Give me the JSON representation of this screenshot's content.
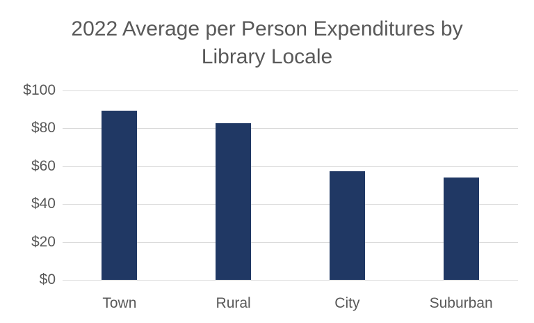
{
  "title_line1": "2022 Average per Person Expenditures by",
  "title_line2": "Library Locale",
  "bar_color": "#203864",
  "y_ticks": [
    "$100",
    "$80",
    "$60",
    "$40",
    "$20",
    "$0"
  ],
  "chart_data": {
    "type": "bar",
    "title": "2022 Average per Person Expenditures by Library Locale",
    "categories": [
      "Town",
      "Rural",
      "City",
      "Suburban"
    ],
    "values": [
      89.2,
      82.6,
      57.3,
      54.0
    ],
    "xlabel": "",
    "ylabel": "",
    "ylim": [
      0,
      100
    ],
    "y_tick_step": 20,
    "y_tick_format": "$",
    "grid": true,
    "legend": "none"
  }
}
